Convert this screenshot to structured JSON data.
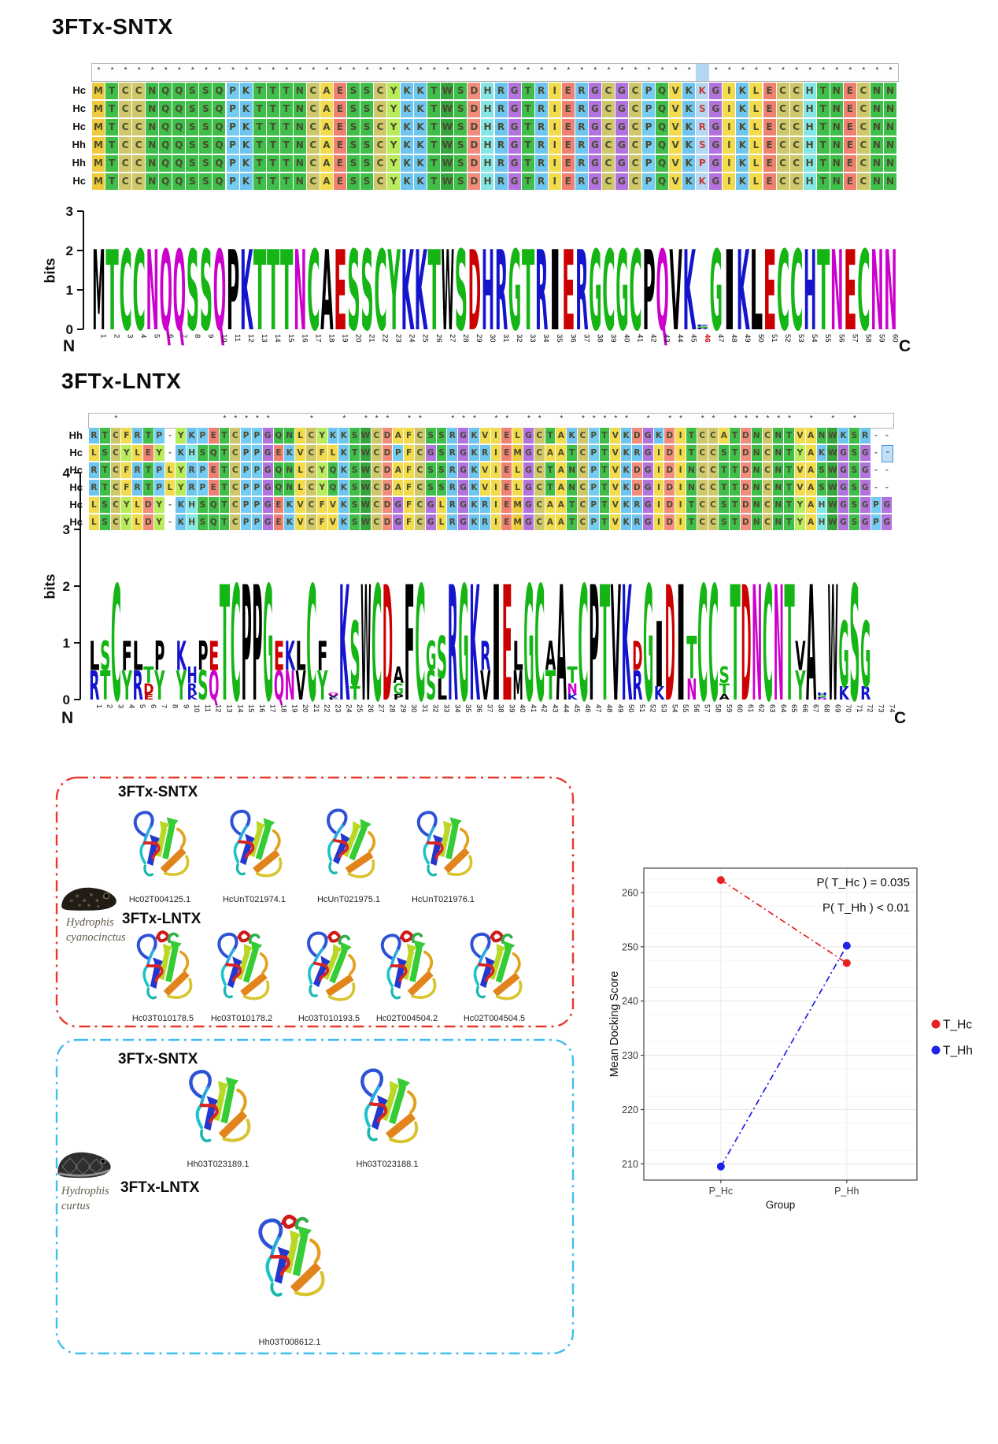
{
  "colors": {
    "aa_bg": {
      "A": "#f2dc4e",
      "C": "#cfc86a",
      "D": "#f28d7e",
      "E": "#ef8072",
      "F": "#f2dc4e",
      "G": "#b273e0",
      "H": "#84e6e6",
      "I": "#f2dc4e",
      "K": "#6ec6f0",
      "L": "#f2dc4e",
      "M": "#eecb3e",
      "N": "#3fbe4a",
      "P": "#74ccf2",
      "Q": "#3fbe4a",
      "R": "#6ec6f0",
      "S": "#3fbe4a",
      "T": "#3fbe4a",
      "V": "#f2dc4e",
      "W": "#36a53e",
      "Y": "#b8ec5a"
    },
    "logo_green": "#15b515",
    "logo_purple": "#cc00cc",
    "logo_blue": "#1414cc",
    "logo_red": "#cc0000",
    "logo_black": "#000000",
    "logo_groups": {
      "green": "GSTYC",
      "purple": "NQ",
      "blue": "KRH",
      "red": "DE",
      "black": "AVLIPWFM"
    },
    "highlight_bg": "#b5d8f2",
    "highlight_text": "#c43c3c",
    "selected_cell_bg": "#bfe0f7",
    "selected_cell_border": "#4f93d8",
    "box1_border": "#e8392e",
    "box2_border": "#3fbfef"
  },
  "sntx": {
    "title": "3FTx-SNTX",
    "row_labels": [
      "Hc",
      "Hc",
      "Hc",
      "Hh",
      "Hh",
      "Hc"
    ],
    "sequences": [
      "MTCCNQQSSQPKTTTNCAESSCYKKTWSDHRGTRIERGCGCPQVKKGIKLECCHTNECNN",
      "MTCCNQQSSQPKTTTNCAESSCYKKTWSDHRGTRIERGCGCPQVKSGIKLECCHTNECNN",
      "MTCCNQQSSQPKTTTNCAESSCYKKTWSDHRGTRIERGCGCPQVKRGIKLECCHTNECNN",
      "MTCCNQQSSQPKTTTNCAESSCYKKTWSDHRGTRIERGCGCPQVKSGIKLECCHTNECNN",
      "MTCCNQQSSQPKTTTNCAESSCYKKTWSDHRGTRIERGCGCPQVKPGIKLECCHTNECNN",
      "MTCCNQQSSQPKTTTNCAESSCYKKTWSDHRGTRIERGCGCPQVKKGIKLECCHTNECNN"
    ],
    "highlight_column": 46,
    "bits_label": "bits",
    "ymax": 3,
    "n_label": "N",
    "c_label": "C"
  },
  "lntx": {
    "title": "3FTx-LNTX",
    "row_labels": [
      "Hh",
      "Hc",
      "Hc",
      "Hc",
      "Hc",
      "Hc"
    ],
    "sequences": [
      "RTCFRTP-YKPETCPPGQNLCYKKSWCDAFCSSRGKVIELGCTAKCPTVKDGKDITCCATDNCNTVANWKSR--",
      "LSCYLEY-KHSQTCPPGEKVCFLKTWCDPFCGSRGKRIEMGCAATCPTVKRGIDITCCSTDNCNTYAKWGSG--",
      "RTCFRTPLYRPETCPPGQNLCYQKSWCDAFCSSRGKVIELGCTANCPTVKDGIDINCCTTDNCNTVASWGSG--",
      "RTCFRTPLYRPETCPPGQNLCYQKSWCDAFCSSRGKVIELGCTANCPTVKDGIDINCCTTDNCNTVASWGSG--",
      "LSCYLDY-KHSQTCPPGEKVCFVKSWCDGFCGLRGKRIEMGCAATCPTVKRGIDITCCSTDNCNTYAHWGSGPG",
      "LSCYLDY-KHSQTCPPGEKVCFVKSWCDGFCGLRGKRIEMGCAATCPTVKRGIDITCCSTDNCNTYAHWGSGPG"
    ],
    "selected_cell": {
      "row": 1,
      "col": 74
    },
    "bits_label": "bits",
    "ymax": 4,
    "n_label": "N",
    "c_label": "C"
  },
  "panel_structures": {
    "box1": {
      "species_line1": "Hydrophis",
      "species_line2": "cyanocinctus",
      "sntx_title": "3FTx-SNTX",
      "lntx_title": "3FTx-LNTX",
      "sntx_structures": [
        "Hc02T004125.1",
        "HcUnT021974.1",
        "HcUnT021975.1",
        "HcUnT021976.1"
      ],
      "lntx_structures": [
        "Hc03T010178.5",
        "Hc03T010178.2",
        "Hc03T010193.5",
        "Hc02T004504.2",
        "Hc02T004504.5"
      ]
    },
    "box2": {
      "species_line1": "Hydrophis",
      "species_line2": "curtus",
      "sntx_title": "3FTx-SNTX",
      "lntx_title": "3FTx-LNTX",
      "sntx_structures": [
        "Hh03T023189.1",
        "Hh03T023188.1"
      ],
      "lntx_structures": [
        "Hh03T008612.1"
      ]
    }
  },
  "chart_data": {
    "type": "scatter",
    "xlabel": "Group",
    "ylabel": "Mean Docking Score",
    "categories": [
      "P_Hc",
      "P_Hh"
    ],
    "series": [
      {
        "name": "T_Hc",
        "color": "#e82020",
        "values": [
          262.3,
          247.0
        ]
      },
      {
        "name": "T_Hh",
        "color": "#2020e8",
        "values": [
          209.5,
          250.2
        ]
      }
    ],
    "annotations": [
      "P( T_Hc ) = 0.035",
      "P( T_Hh ) < 0.01"
    ],
    "ylim": [
      207,
      264.5
    ],
    "yticks": [
      210,
      220,
      230,
      240,
      250,
      260
    ],
    "grid": true,
    "legend_position": "right",
    "line_style": "dashdot"
  }
}
